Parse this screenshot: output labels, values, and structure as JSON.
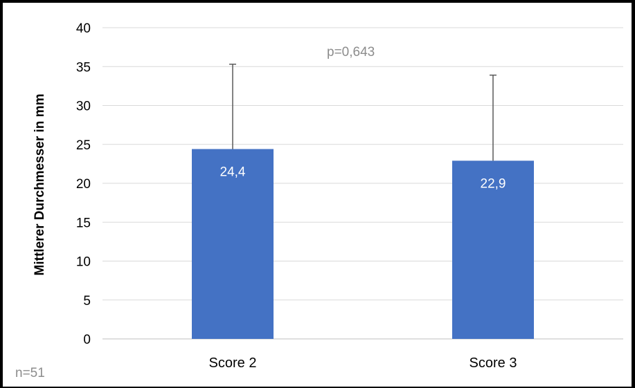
{
  "chart_data": {
    "type": "bar",
    "categories": [
      "Score 2",
      "Score 3"
    ],
    "values": [
      24.4,
      22.9
    ],
    "value_labels": [
      "24,4",
      "22,9"
    ],
    "error_upper": [
      35.3,
      33.9
    ],
    "ylabel": "Mittlerer Durchmesser in mm",
    "xlabel": "",
    "ylim": [
      0,
      40
    ],
    "yticks": [
      0,
      5,
      10,
      15,
      20,
      25,
      30,
      35,
      40
    ],
    "grid": true,
    "bar_color": "#4472c4",
    "annotations": {
      "p_value": "p=0,643",
      "n": "n=51"
    }
  }
}
